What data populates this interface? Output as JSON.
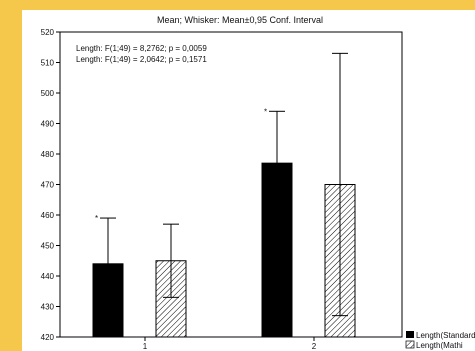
{
  "chart_data": {
    "type": "bar",
    "title": "Mean; Whisker: Mean±0,95 Conf. Interval",
    "categories": [
      "1",
      "2"
    ],
    "ylim": [
      420,
      520
    ],
    "yticks": [
      "420",
      "430",
      "440",
      "450",
      "460",
      "470",
      "480",
      "490",
      "500",
      "510",
      "520"
    ],
    "grid": false,
    "legend_position": "bottom-right",
    "series": [
      {
        "name": "Length(Standard)",
        "fill": "solid",
        "color": "#000000",
        "values": [
          444,
          477
        ],
        "ci_low": [
          429,
          459
        ],
        "ci_high": [
          459,
          494
        ]
      },
      {
        "name": "Length(Mathi",
        "fill": "hatched",
        "color": "#000000",
        "values": [
          445,
          470
        ],
        "ci_low": [
          433,
          427
        ],
        "ci_high": [
          457,
          513
        ]
      }
    ],
    "significance_marks": [
      {
        "series": 0,
        "category": 0,
        "text": "*"
      },
      {
        "series": 0,
        "category": 1,
        "text": "*"
      }
    ],
    "annotations": [
      "Length:   F(1;49) = 8,2762; p = 0,0059",
      "Length:   F(1;49) = 2,0642; p = 0,1571"
    ]
  }
}
